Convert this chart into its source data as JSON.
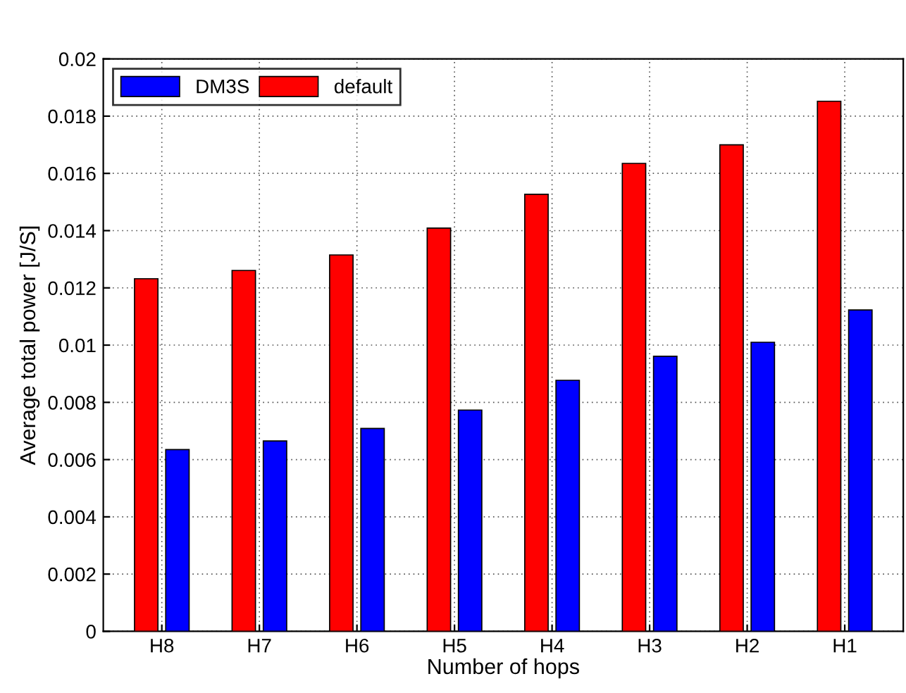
{
  "chart_data": {
    "type": "bar",
    "xlabel": "Number of hops",
    "ylabel": "Average total power [J/S]",
    "categories": [
      "H8",
      "H7",
      "H6",
      "H5",
      "H4",
      "H3",
      "H2",
      "H1"
    ],
    "series": [
      {
        "name": "default",
        "color": "#ff0000",
        "values": [
          0.01232,
          0.01261,
          0.01315,
          0.01409,
          0.01527,
          0.01635,
          0.017,
          0.01852
        ]
      },
      {
        "name": "DM3S",
        "color": "#0000ff",
        "values": [
          0.00635,
          0.00665,
          0.00709,
          0.00773,
          0.00877,
          0.00961,
          0.0101,
          0.01123
        ]
      }
    ],
    "ylim": [
      0,
      0.02
    ],
    "yticks": [
      0,
      0.002,
      0.004,
      0.006,
      0.008,
      0.01,
      0.012,
      0.014,
      0.016,
      0.018,
      0.02
    ],
    "grid": true,
    "legend": "top left"
  }
}
